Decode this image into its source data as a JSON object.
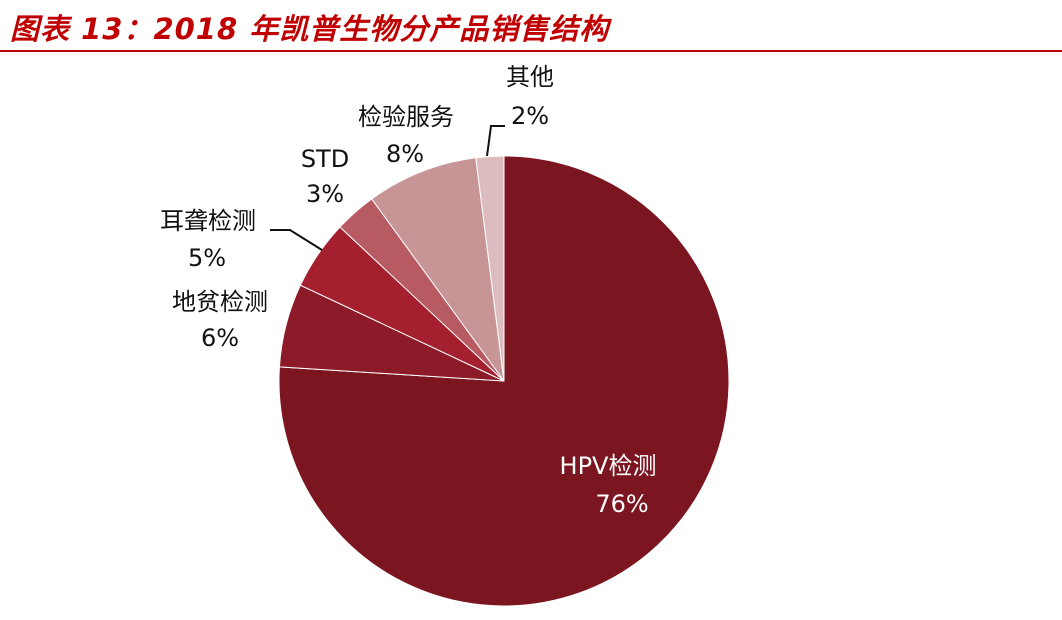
{
  "title": "图表 13：2018 年凯普生物分产品销售结构",
  "colors": {
    "title": "#c00000",
    "rule": "#c00000"
  },
  "chart_data": {
    "type": "pie",
    "title": "图表 13：2018 年凯普生物分产品销售结构",
    "slices": [
      {
        "name": "HPV检测",
        "value": 76,
        "label": "76%",
        "color": "#7b1520"
      },
      {
        "name": "地贫检测",
        "value": 6,
        "label": "6%",
        "color": "#8c1a28"
      },
      {
        "name": "耳聋检测",
        "value": 5,
        "label": "5%",
        "color": "#a5202f"
      },
      {
        "name": "STD",
        "value": 3,
        "label": "3%",
        "color": "#b85a62"
      },
      {
        "name": "检验服务",
        "value": 8,
        "label": "8%",
        "color": "#c89597"
      },
      {
        "name": "其他",
        "value": 2,
        "label": "2%",
        "color": "#dcbcbe"
      }
    ],
    "start_angle": "12 o'clock",
    "direction": "clockwise",
    "legend": "none"
  }
}
